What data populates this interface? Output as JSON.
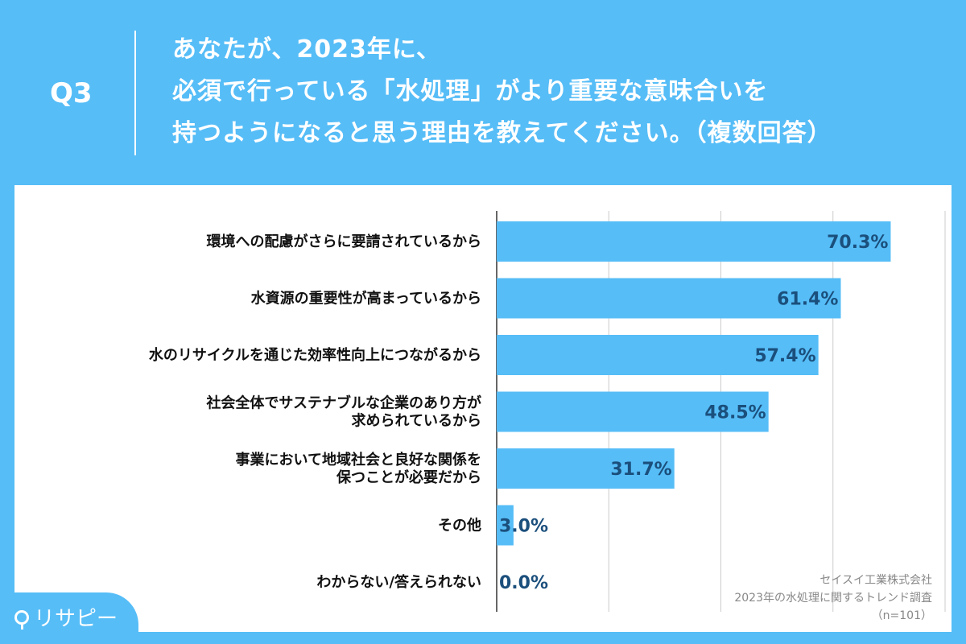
{
  "header": {
    "question": "Q3",
    "title_lines": [
      "あなたが、2023年に、",
      "必須で行っている「水処理」がより重要な意味合いを",
      "持つようになると思う理由を教えてください。（複数回答）"
    ]
  },
  "logo": {
    "text": "リサピー"
  },
  "source": {
    "company": "セイスイ工業株式会社",
    "survey": "2023年の水処理に関するトレンド調査",
    "sample": "（n=101）"
  },
  "colors": {
    "background": "#56bdf7",
    "bar": "#56bdf7",
    "value_text": "#1b4f7c"
  },
  "chart_data": {
    "type": "bar",
    "orientation": "horizontal",
    "categories": [
      [
        "環境への配慮がさらに要請されているから"
      ],
      [
        "水資源の重要性が高まっているから"
      ],
      [
        "水のリサイクルを通じた効率性向上につながるから"
      ],
      [
        "社会全体でサステナブルな企業のあり方が",
        "求められているから"
      ],
      [
        "事業において地域社会と良好な関係を",
        "保つことが必要だから"
      ],
      [
        "その他"
      ],
      [
        "わからない/答えられない"
      ]
    ],
    "values": [
      70.3,
      61.4,
      57.4,
      48.5,
      31.7,
      3.0,
      0.0
    ],
    "value_labels": [
      "70.3%",
      "61.4%",
      "57.4%",
      "48.5%",
      "31.7%",
      "3.0%",
      "0.0%"
    ],
    "xlim": [
      0,
      80
    ],
    "grid": true,
    "gridlines": [
      20,
      40,
      60,
      80
    ]
  }
}
